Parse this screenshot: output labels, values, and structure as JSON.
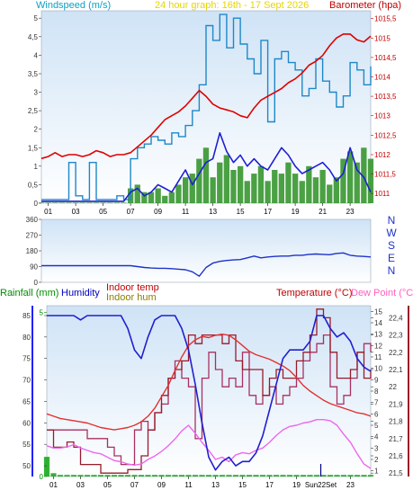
{
  "header": {
    "windspeed_label": "Windspeed (m/s)",
    "period_label": "24 hour graph: 16th - 17 Sept 2026",
    "barometer_label": "Barometer (hpa)"
  },
  "direction": {
    "compass_letters": [
      "N",
      "W",
      "S",
      "E",
      "N"
    ]
  },
  "lower_header": {
    "rainfall_label": "Rainfall (mm)",
    "humidity_label": "Humidity",
    "indoor_temp_label": "Indoor temp",
    "indoor_hum_label": "Indoor hum",
    "temperature_label": "Temperature (°C)",
    "dewpoint_label": "Dew Point (°C)"
  },
  "colors": {
    "plot_top": "#cfe3f6",
    "plot_bottom": "#ffffff",
    "windspeed": "#1e88c8",
    "gust": "#1f1fd2",
    "wind_dir": "#1e32c8",
    "barometer": "#e00000",
    "bright_sun": "#1e8a14",
    "humidity": "#2020d0",
    "indoor_temp": "#991b2b",
    "indoor_hum": "#a83060",
    "temperature": "#e23030",
    "dewpoint": "#ee66ee",
    "rainfall": "#00a000",
    "header_yellow": "#e6d600",
    "label_cyan": "#0aa0c8",
    "label_red": "#c00000",
    "label_green": "#008c00",
    "label_blue": "#0000c0",
    "label_pink": "#ff60c0",
    "label_olive": "#8a8000"
  },
  "chart_data": [
    {
      "type": "line",
      "title": "24 hour graph: 16th - 17 Sept 2026",
      "x_ticks": [
        "01",
        "03",
        "05",
        "07",
        "09",
        "11",
        "13",
        "15",
        "17",
        "19",
        "21",
        "23"
      ],
      "x": [
        0,
        0.5,
        1,
        1.5,
        2,
        2.5,
        3,
        3.5,
        4,
        4.5,
        5,
        5.5,
        6,
        6.5,
        7,
        7.5,
        8,
        8.5,
        9,
        9.5,
        10,
        10.5,
        11,
        11.5,
        12,
        12.5,
        13,
        13.5,
        14,
        14.5,
        15,
        15.5,
        16,
        16.5,
        17,
        17.5,
        18,
        18.5,
        19,
        19.5,
        20,
        20.5,
        21,
        21.5,
        22,
        22.5,
        23,
        23.5,
        24
      ],
      "left_axis": {
        "label": "Windspeed (m/s)",
        "ticks": [
          "0",
          "0,5",
          "1",
          "1,5",
          "2",
          "2,5",
          "3",
          "3,5",
          "4",
          "4,5",
          "5"
        ],
        "range": [
          0,
          5.2
        ]
      },
      "right_axis": {
        "label": "Barometer (hpa)",
        "ticks": [
          "1011",
          "1011,5",
          "1012",
          "1012,5",
          "1013",
          "1013,5",
          "1014",
          "1014,5",
          "1015",
          "1015,5"
        ],
        "range": [
          1010.75,
          1015.7
        ]
      },
      "series": [
        {
          "name": "Windspeed",
          "axis": "left",
          "values": [
            0.1,
            0.1,
            0.1,
            0.1,
            1.1,
            0.2,
            0.1,
            1.1,
            0.1,
            0.1,
            0.1,
            0.2,
            0.1,
            1.2,
            1.5,
            1.6,
            1.8,
            1.7,
            1.6,
            1.9,
            1.8,
            2.1,
            2.5,
            3.2,
            4.8,
            4.4,
            5.1,
            4.2,
            5.0,
            4.3,
            3.9,
            3.5,
            4.4,
            2.2,
            3.9,
            4.1,
            3.8,
            3.6,
            2.9,
            3.1,
            3.9,
            3.3,
            3.0,
            2.6,
            2.9,
            3.8,
            3.6,
            3.2,
            3.7
          ]
        },
        {
          "name": "Gust",
          "axis": "left",
          "values": [
            0.05,
            0.05,
            0.05,
            0.05,
            0.05,
            0.05,
            0.05,
            0.05,
            0.05,
            0.05,
            0.05,
            0.05,
            0.05,
            0.3,
            0.4,
            0.2,
            0.3,
            0.5,
            0.4,
            0.3,
            0.6,
            0.9,
            0.5,
            0.8,
            1.1,
            1.2,
            1.9,
            1.4,
            1.1,
            1.3,
            1.0,
            1.2,
            1.0,
            0.9,
            1.2,
            1.5,
            1.3,
            1.0,
            0.8,
            0.9,
            1.0,
            1.1,
            0.9,
            0.6,
            0.8,
            1.5,
            0.9,
            0.7,
            0.3
          ]
        },
        {
          "name": "Bright sunshine",
          "axis": "left",
          "values": [
            0,
            0,
            0,
            0,
            0,
            0,
            0,
            0,
            0,
            0,
            0,
            0,
            0,
            0.4,
            0.5,
            0.3,
            0.3,
            0.4,
            0.2,
            0.3,
            0.5,
            0.7,
            0.8,
            1.2,
            1.5,
            0.7,
            1.1,
            1.3,
            0.9,
            1.0,
            0.6,
            0.8,
            1.0,
            0.6,
            0.9,
            0.8,
            1.1,
            0.8,
            0.6,
            1.0,
            0.7,
            0.9,
            0.5,
            0.7,
            1.2,
            1.4,
            1.1,
            1.5,
            1.2
          ]
        },
        {
          "name": "Barometer",
          "axis": "right",
          "values": [
            1011.9,
            1011.95,
            1012.05,
            1011.95,
            1012.0,
            1012.0,
            1011.95,
            1012.0,
            1012.1,
            1012.05,
            1011.95,
            1012.0,
            1012.0,
            1012.05,
            1012.2,
            1012.35,
            1012.5,
            1012.7,
            1012.9,
            1013.0,
            1013.1,
            1013.25,
            1013.45,
            1013.65,
            1013.5,
            1013.3,
            1013.2,
            1013.15,
            1013.1,
            1013.0,
            1012.95,
            1013.2,
            1013.4,
            1013.5,
            1013.6,
            1013.7,
            1013.85,
            1013.95,
            1014.1,
            1014.3,
            1014.4,
            1014.55,
            1014.8,
            1015.0,
            1015.1,
            1015.1,
            1014.95,
            1014.9,
            1015.05
          ]
        }
      ]
    },
    {
      "type": "line",
      "title": "",
      "x": [
        0,
        0.5,
        1,
        1.5,
        2,
        2.5,
        3,
        3.5,
        4,
        4.5,
        5,
        5.5,
        6,
        6.5,
        7,
        7.5,
        8,
        8.5,
        9,
        9.5,
        10,
        10.5,
        11,
        11.5,
        12,
        12.5,
        13,
        13.5,
        14,
        14.5,
        15,
        15.5,
        16,
        16.5,
        17,
        17.5,
        18,
        18.5,
        19,
        19.5,
        20,
        20.5,
        21,
        21.5,
        22,
        22.5,
        23,
        23.5,
        24
      ],
      "left_axis": {
        "ticks": [
          "0",
          "90",
          "180",
          "270",
          "360"
        ],
        "range": [
          0,
          360
        ]
      },
      "series": [
        {
          "name": "Wind direction",
          "values": [
            95,
            95,
            95,
            95,
            95,
            95,
            95,
            95,
            95,
            95,
            95,
            95,
            95,
            95,
            90,
            85,
            82,
            80,
            80,
            78,
            75,
            72,
            60,
            35,
            85,
            110,
            120,
            125,
            128,
            130,
            140,
            150,
            140,
            145,
            148,
            150,
            150,
            155,
            155,
            160,
            162,
            160,
            158,
            165,
            168,
            155,
            150,
            148,
            145
          ]
        }
      ]
    },
    {
      "type": "line",
      "title": "",
      "x_ticks": [
        "01",
        "03",
        "05",
        "07",
        "09",
        "11",
        "13",
        "15",
        "17",
        "19",
        "21",
        "23"
      ],
      "x": [
        0,
        0.5,
        1,
        1.5,
        2,
        2.5,
        3,
        3.5,
        4,
        4.5,
        5,
        5.5,
        6,
        6.5,
        7,
        7.5,
        8,
        8.5,
        9,
        9.5,
        10,
        10.5,
        11,
        11.5,
        12,
        12.5,
        13,
        13.5,
        14,
        14.5,
        15,
        15.5,
        16,
        16.5,
        17,
        17.5,
        18,
        18.5,
        19,
        19.5,
        20,
        20.5,
        21,
        21.5,
        22,
        22.5,
        23,
        23.5,
        24
      ],
      "x_annotation": "Sun22Set",
      "left_axis": {
        "label": "Humidity",
        "ticks": [
          "50",
          "55",
          "60",
          "65",
          "70",
          "75",
          "80",
          "85"
        ],
        "range": [
          47.5,
          87.3
        ]
      },
      "rainfall_axis": {
        "label": "Rainfall (mm)",
        "ticks": [
          "0",
          "5"
        ],
        "range": [
          0,
          5.2
        ]
      },
      "right_axis": {
        "label": "Temperature (°C)",
        "ticks": [
          "1",
          "2",
          "3",
          "4",
          "5",
          "6",
          "7",
          "8",
          "9",
          "10",
          "11",
          "12",
          "13",
          "14",
          "15"
        ],
        "range": [
          0.5,
          15.5
        ]
      },
      "indoor_axis": {
        "label": "Indoor temp",
        "ticks": [
          "21,5",
          "21,6",
          "21,7",
          "21,8",
          "21,9",
          "22",
          "22,1",
          "22,2",
          "22,3",
          "22,4"
        ],
        "range": [
          21.48,
          22.47
        ]
      },
      "series": [
        {
          "name": "Humidity",
          "axis": "left",
          "values": [
            85,
            85,
            85,
            85,
            85,
            84,
            85,
            85,
            85,
            85,
            85,
            85,
            82,
            77,
            75,
            80,
            84,
            85,
            85,
            85,
            82,
            77,
            69,
            60,
            52,
            49,
            51,
            52,
            50,
            51,
            51,
            53,
            57,
            63,
            69,
            75,
            77,
            77,
            77,
            79,
            85,
            85,
            82,
            80,
            81,
            79,
            75,
            73,
            72
          ]
        },
        {
          "name": "Temperature",
          "axis": "right",
          "values": [
            6.0,
            5.8,
            5.6,
            5.5,
            5.4,
            5.3,
            5.2,
            5.0,
            4.8,
            4.7,
            4.6,
            4.7,
            4.8,
            5.0,
            5.3,
            5.8,
            6.5,
            7.5,
            8.5,
            9.8,
            11.0,
            12.0,
            12.5,
            12.8,
            12.7,
            12.9,
            13.0,
            12.9,
            12.5,
            12.0,
            11.5,
            11.2,
            11.0,
            10.8,
            10.5,
            10.2,
            9.8,
            9.2,
            8.5,
            8.0,
            7.6,
            7.2,
            6.9,
            6.7,
            6.5,
            6.3,
            6.1,
            6.0,
            5.8
          ]
        },
        {
          "name": "Dew Point",
          "axis": "right",
          "values": [
            3.2,
            3.0,
            3.0,
            3.1,
            3.3,
            3.0,
            2.8,
            2.6,
            2.5,
            2.2,
            1.9,
            1.8,
            1.6,
            1.5,
            1.6,
            2.0,
            2.3,
            2.7,
            3.2,
            3.8,
            4.5,
            5.0,
            4.3,
            3.5,
            2.8,
            2.0,
            2.2,
            1.8,
            2.4,
            2.6,
            2.5,
            2.8,
            3.0,
            3.5,
            4.1,
            4.6,
            4.9,
            5.0,
            5.2,
            5.3,
            5.5,
            5.5,
            5.4,
            5.0,
            4.2,
            3.5,
            2.5,
            1.6,
            1.2
          ]
        },
        {
          "name": "Indoor temp",
          "axis": "indoor",
          "values": [
            21.75,
            21.65,
            21.65,
            21.68,
            21.65,
            21.55,
            21.55,
            21.55,
            21.5,
            21.5,
            21.5,
            21.5,
            21.52,
            21.52,
            21.6,
            21.75,
            21.85,
            21.95,
            22.05,
            22.1,
            22.15,
            22.3,
            22.25,
            22.3,
            22.3,
            22.3,
            22.25,
            22.3,
            22.15,
            22.1,
            22.1,
            22.1,
            21.95,
            22.05,
            22.1,
            22.05,
            22.05,
            22.15,
            22.2,
            22.3,
            22.45,
            22.4,
            22.2,
            22.05,
            22.05,
            22.1,
            22.2,
            22.05,
            22.1
          ]
        },
        {
          "name": "Indoor hum",
          "axis": "indoor",
          "values": [
            21.75,
            21.75,
            21.75,
            21.75,
            21.75,
            21.75,
            21.7,
            21.7,
            21.7,
            21.65,
            21.6,
            21.55,
            21.55,
            21.75,
            21.8,
            21.75,
            21.85,
            21.9,
            22.05,
            22.15,
            22.05,
            22.0,
            21.7,
            22.05,
            22.2,
            22.1,
            22.0,
            22.05,
            22.0,
            22.2,
            21.95,
            21.9,
            21.95,
            22.0,
            21.9,
            21.95,
            22.0,
            22.05,
            22.15,
            22.2,
            22.25,
            22.3,
            22.0,
            21.9,
            21.95,
            22.05,
            22.2,
            22.25,
            22.2
          ]
        },
        {
          "name": "Rainfall",
          "axis": "rainfall",
          "values": [
            0.6,
            0.1,
            0.05,
            0.05,
            0.05,
            0.05,
            0.05,
            0.05,
            0.05,
            0.05,
            0.05,
            0.05,
            0.05,
            0.05,
            0.05,
            0.05,
            0.05,
            0.05,
            0.05,
            0.05,
            0.05,
            0.05,
            0.05,
            0.05,
            0.05,
            0.05,
            0.05,
            0.05,
            0.05,
            0.05,
            0.05,
            0.05,
            0.05,
            0.05,
            0.05,
            0.05,
            0.05,
            0.05,
            0.05,
            0.05,
            0.05,
            0.05,
            0.05,
            0.05,
            0.05,
            0.05,
            0.05,
            0.05,
            0.05
          ]
        }
      ]
    }
  ]
}
